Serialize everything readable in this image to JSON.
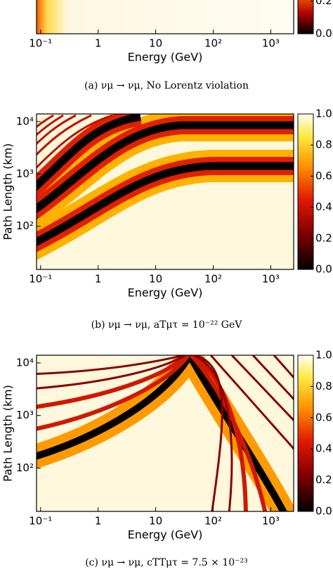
{
  "chart_data": [
    {
      "type": "heatmap",
      "xlabel": "Energy (GeV)",
      "caption": "(a) νμ → νμ, No Lorentz violation",
      "xscale": "log",
      "xlim": [
        0.085,
        2500
      ],
      "xticks": [
        {
          "value": 0.1,
          "label": "10⁻¹"
        },
        1,
        10,
        {
          "value": 100,
          "label": "10²"
        },
        {
          "value": 1000,
          "label": "10³"
        }
      ],
      "colorbar_lim": [
        0,
        0.25
      ],
      "colorbar_ticks": [
        {
          "value": 0.0,
          "label": "0.0"
        },
        {
          "value": 0.2,
          "label": "0.2"
        }
      ]
    },
    {
      "type": "heatmap",
      "xlabel": "Energy (GeV)",
      "ylabel": "Path Length (km)",
      "caption": "(b) νμ → νμ, aTμτ = 10⁻²² GeV",
      "xscale": "log",
      "yscale": "log",
      "xlim": [
        0.085,
        2500
      ],
      "ylim": [
        15,
        14000
      ],
      "xticks": [
        {
          "value": 0.1,
          "label": "10⁻¹"
        },
        1,
        10,
        {
          "value": 100,
          "label": "10²"
        },
        {
          "value": 1000,
          "label": "10³"
        }
      ],
      "yticks": [
        {
          "value": 100,
          "label": "10²"
        },
        {
          "value": 1000,
          "label": "10³"
        },
        {
          "value": 10000,
          "label": "10⁴"
        }
      ],
      "colorbar_lim": [
        0,
        1
      ],
      "colorbar_ticks": [
        {
          "value": 0.0,
          "label": "0.0"
        },
        {
          "value": 0.2,
          "label": "0.2"
        },
        {
          "value": 0.4,
          "label": "0.4"
        },
        {
          "value": 0.6,
          "label": "0.6"
        },
        {
          "value": 0.8,
          "label": "0.8"
        },
        {
          "value": 1.0,
          "label": "1.0"
        }
      ]
    },
    {
      "type": "heatmap",
      "xlabel": "Energy (GeV)",
      "ylabel": "Path Length (km)",
      "caption": "(c) νμ → νμ, cTTμτ = 7.5 × 10⁻²³",
      "xscale": "log",
      "yscale": "log",
      "xlim": [
        0.085,
        2500
      ],
      "ylim": [
        15,
        14000
      ],
      "xticks": [
        {
          "value": 0.1,
          "label": "10⁻¹"
        },
        1,
        10,
        {
          "value": 100,
          "label": "10²"
        },
        {
          "value": 1000,
          "label": "10³"
        }
      ],
      "yticks": [
        {
          "value": 100,
          "label": "10²"
        },
        {
          "value": 1000,
          "label": "10³"
        },
        {
          "value": 10000,
          "label": "10⁴"
        }
      ],
      "colorbar_lim": [
        0,
        1
      ],
      "colorbar_ticks": [
        {
          "value": 0.0,
          "label": "0.0"
        },
        {
          "value": 0.2,
          "label": "0.2"
        },
        {
          "value": 0.4,
          "label": "0.4"
        },
        {
          "value": 0.6,
          "label": "0.6"
        },
        {
          "value": 0.8,
          "label": "0.8"
        },
        {
          "value": 1.0,
          "label": "1.0"
        }
      ]
    }
  ]
}
